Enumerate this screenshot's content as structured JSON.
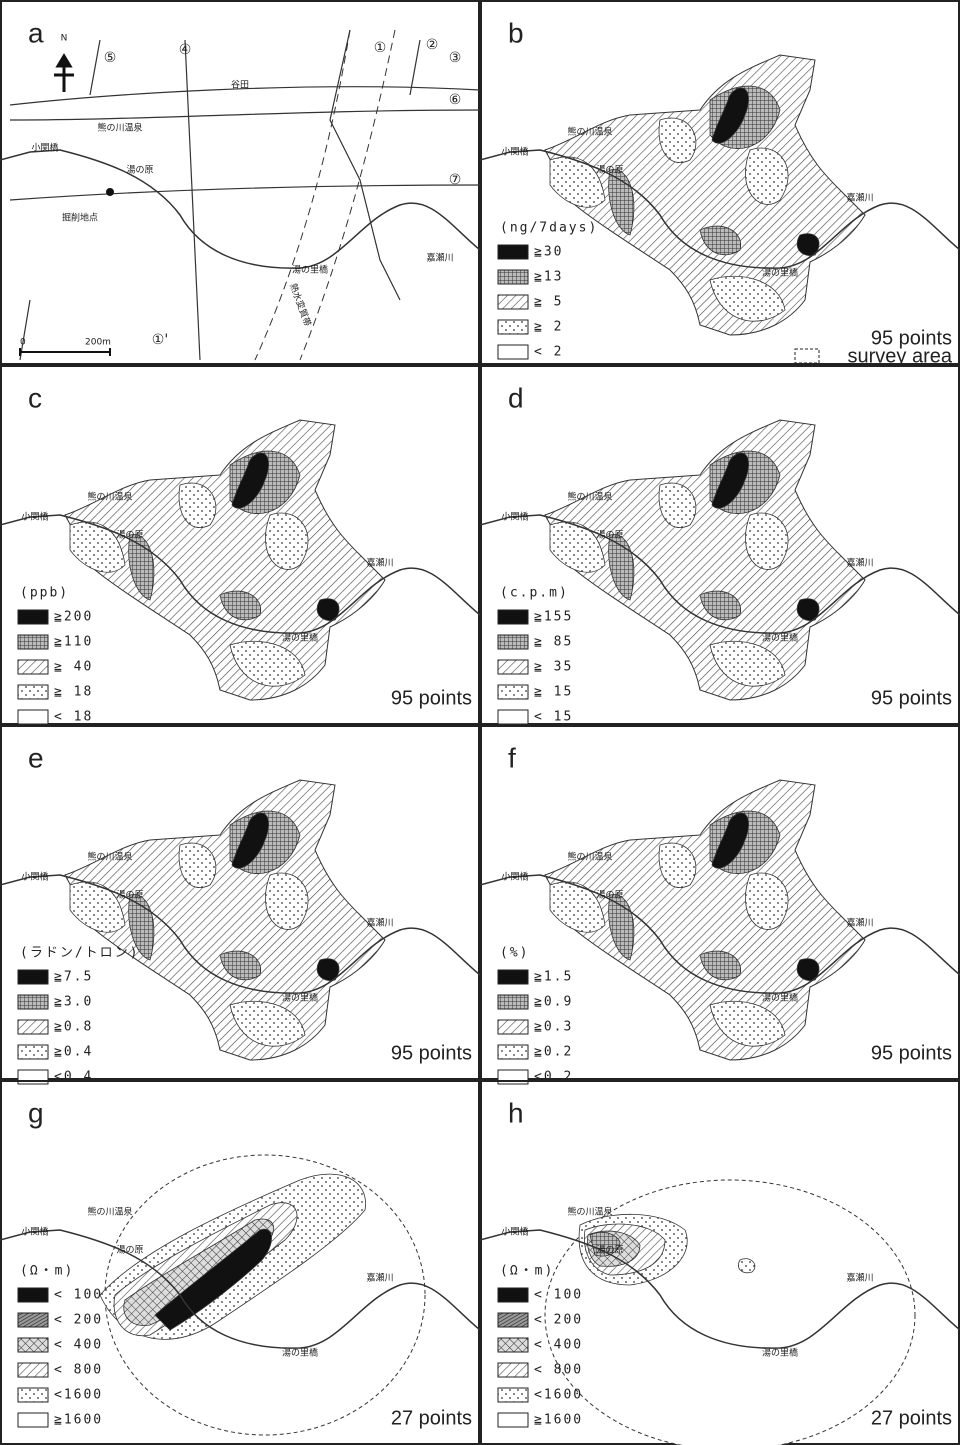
{
  "panels": [
    {
      "letter": "a",
      "north": "N",
      "markers": [
        "⑤",
        "④",
        "①",
        "②",
        "③",
        "⑥",
        "⑦",
        "①'"
      ],
      "places": [
        "谷田",
        "熊の川温泉",
        "小関橋",
        "湯の原",
        "掘削地点",
        "湯の里橋",
        "嘉瀬川",
        "熱水変質帯"
      ],
      "scale": [
        "0",
        "200m"
      ]
    },
    {
      "letter": "b",
      "places": [
        "熊の川温泉",
        "小関橋",
        "湯の原",
        "嘉瀬川",
        "湯の里橋"
      ],
      "unit": "(ng/7days)",
      "legend": [
        "≧30",
        "≧13",
        "≧ 5",
        "≧ 2",
        "< 2"
      ],
      "points": "95 points",
      "note": "survey area"
    },
    {
      "letter": "c",
      "places": [
        "熊の川温泉",
        "小関橋",
        "湯の原",
        "嘉瀬川",
        "湯の里橋"
      ],
      "unit": "(ppb)",
      "legend": [
        "≧200",
        "≧110",
        "≧ 40",
        "≧ 18",
        "< 18"
      ],
      "points": "95 points"
    },
    {
      "letter": "d",
      "places": [
        "熊の川温泉",
        "小関橋",
        "湯の原",
        "嘉瀬川",
        "湯の里橋"
      ],
      "unit": "(c.p.m)",
      "legend": [
        "≧155",
        "≧ 85",
        "≧ 35",
        "≧ 15",
        "< 15"
      ],
      "points": "95 points"
    },
    {
      "letter": "e",
      "places": [
        "熊の川温泉",
        "小関橋",
        "湯の原",
        "嘉瀬川",
        "湯の里橋"
      ],
      "unit": "(ラドン/トロン)",
      "legend": [
        "≧7.5",
        "≧3.0",
        "≧0.8",
        "≧0.4",
        "<0.4"
      ],
      "points": "95 points"
    },
    {
      "letter": "f",
      "places": [
        "熊の川温泉",
        "小関橋",
        "湯の原",
        "嘉瀬川",
        "湯の里橋"
      ],
      "unit": "(%)",
      "legend": [
        "≧1.5",
        "≧0.9",
        "≧0.3",
        "≧0.2",
        "<0.2"
      ],
      "points": "95 points"
    },
    {
      "letter": "g",
      "places": [
        "熊の川温泉",
        "小関橋",
        "湯の原",
        "嘉瀬川",
        "湯の里橋"
      ],
      "unit": "(Ω・m)",
      "legend": [
        "< 100",
        "< 200",
        "< 400",
        "< 800",
        "<1600",
        "≧1600"
      ],
      "points": "27 points"
    },
    {
      "letter": "h",
      "places": [
        "熊の川温泉",
        "小関橋",
        "湯の原",
        "嘉瀬川",
        "湯の里橋"
      ],
      "unit": "(Ω・m)",
      "legend": [
        "< 100",
        "< 200",
        "< 400",
        "< 800",
        "<1600",
        "≧1600"
      ],
      "points": "27 points"
    }
  ]
}
